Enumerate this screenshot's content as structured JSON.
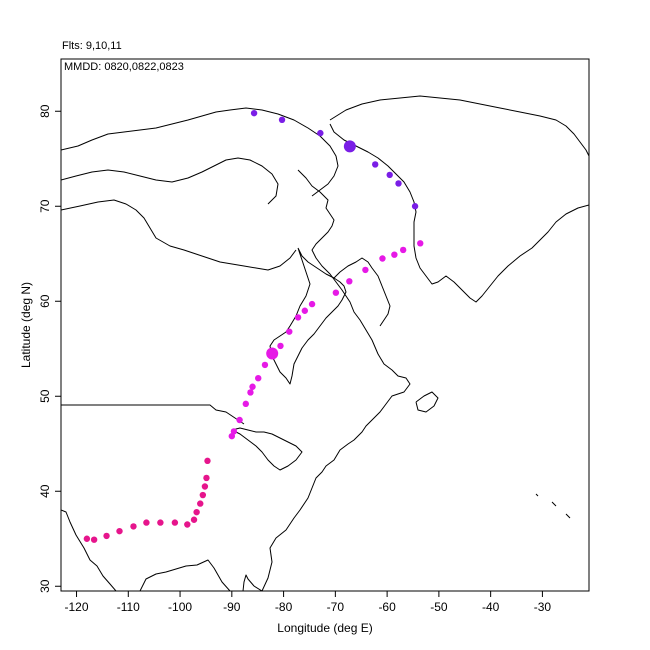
{
  "header": {
    "flights": "Flts: 9,10,11",
    "dates": "MMDD: 0820,0822,0823"
  },
  "chart_data": {
    "type": "scatter",
    "title": "",
    "xlabel": "Longitude (deg E)",
    "ylabel": "Latitude (deg N)",
    "xlim": [
      -123,
      -21
    ],
    "ylim": [
      29.5,
      85.5
    ],
    "xticks": [
      -120,
      -110,
      -100,
      -90,
      -80,
      -70,
      -60,
      -50,
      -40,
      -30
    ],
    "yticks": [
      30,
      40,
      50,
      60,
      70,
      80
    ],
    "grid": false,
    "basemap": "coastlines and political boundaries of North America and Greenland",
    "series": [
      {
        "color": "#e6158c",
        "points": [
          [
            -118,
            35.0
          ],
          [
            -116.6,
            34.9
          ],
          [
            -114.2,
            35.3
          ],
          [
            -111.7,
            35.8
          ],
          [
            -109,
            36.3
          ],
          [
            -106.5,
            36.7
          ],
          [
            -103.8,
            36.7
          ],
          [
            -101.0,
            36.7
          ],
          [
            -98.6,
            36.5
          ],
          [
            -97.3,
            37.0
          ],
          [
            -96.8,
            37.8
          ],
          [
            -96.1,
            38.7
          ],
          [
            -95.6,
            39.6
          ],
          [
            -95.2,
            40.5
          ],
          [
            -94.9,
            41.4
          ],
          [
            -94.7,
            43.2
          ]
        ]
      },
      {
        "color": "#e619e6",
        "points": [
          [
            -90.0,
            45.8
          ],
          [
            -89.6,
            46.3
          ],
          [
            -88.5,
            47.5
          ],
          [
            -87.3,
            49.2
          ],
          [
            -86.4,
            50.4
          ],
          [
            -86.0,
            51.0
          ],
          [
            -84.9,
            51.9
          ],
          [
            -83.6,
            53.3
          ],
          [
            -82.2,
            54.5
          ],
          [
            -80.6,
            55.3
          ],
          [
            -78.9,
            56.8
          ],
          [
            -77.2,
            58.3
          ],
          [
            -75.9,
            59.0
          ],
          [
            -74.5,
            59.7
          ],
          [
            -69.9,
            60.9
          ],
          [
            -67.3,
            62.1
          ],
          [
            -64.2,
            63.3
          ],
          [
            -60.9,
            64.5
          ],
          [
            -58.6,
            64.9
          ],
          [
            -56.9,
            65.4
          ],
          [
            -53.6,
            66.1
          ]
        ]
      },
      {
        "color": "#7a1ee6",
        "points": [
          [
            -85.7,
            79.8
          ],
          [
            -80.3,
            79.1
          ],
          [
            -72.9,
            77.7
          ],
          [
            -67.2,
            76.3
          ],
          [
            -62.3,
            74.4
          ],
          [
            -59.5,
            73.3
          ],
          [
            -57.8,
            72.4
          ],
          [
            -54.6,
            70.0
          ]
        ]
      }
    ],
    "highlight_points": [
      {
        "lon": -82.2,
        "lat": 54.5,
        "color": "#e619e6"
      },
      {
        "lon": -67.2,
        "lat": 76.3,
        "color": "#7a1ee6"
      }
    ]
  }
}
